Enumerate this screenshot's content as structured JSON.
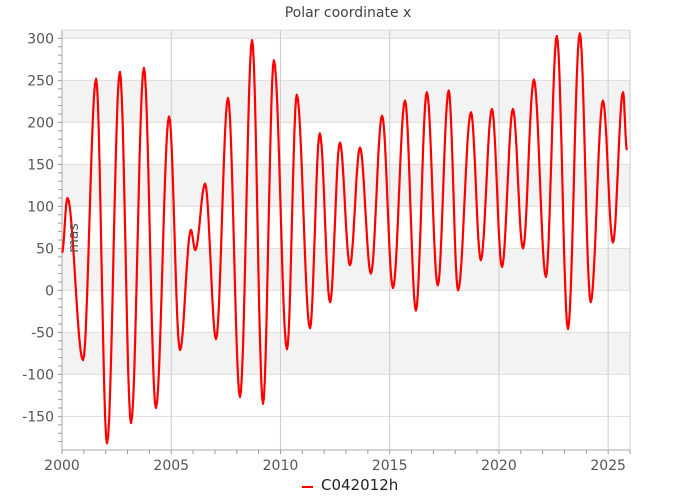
{
  "chart_data": {
    "type": "line",
    "title": "Polar coordinate x",
    "xlabel": "",
    "ylabel": "mas",
    "xlim": [
      2000,
      2026
    ],
    "ylim": [
      -190,
      310
    ],
    "xticks": [
      2000,
      2005,
      2010,
      2015,
      2020,
      2025
    ],
    "yticks": [
      -150,
      -100,
      -50,
      0,
      50,
      100,
      150,
      200,
      250,
      300
    ],
    "grid": true,
    "alternating_bands": true,
    "legend_position": "bottom",
    "series": [
      {
        "name": "C042012h",
        "color": "#ff0000",
        "x": [
          2000.0,
          2000.25,
          2000.96,
          2001.56,
          2002.06,
          2002.65,
          2003.16,
          2003.75,
          2004.3,
          2004.9,
          2005.4,
          2005.9,
          2006.1,
          2006.55,
          2007.05,
          2007.6,
          2008.15,
          2008.7,
          2009.2,
          2009.7,
          2010.3,
          2010.75,
          2011.35,
          2011.8,
          2012.27,
          2012.72,
          2013.18,
          2013.64,
          2014.14,
          2014.65,
          2015.15,
          2015.7,
          2016.2,
          2016.7,
          2017.2,
          2017.7,
          2018.13,
          2018.72,
          2019.17,
          2019.68,
          2020.14,
          2020.64,
          2021.1,
          2021.6,
          2022.15,
          2022.65,
          2023.16,
          2023.7,
          2024.2,
          2024.76,
          2025.22,
          2025.68,
          2025.86
        ],
        "y": [
          45,
          110,
          -83,
          252,
          -182,
          260,
          -158,
          265,
          -140,
          207,
          -71,
          72,
          48,
          127,
          -58,
          229,
          -127,
          298,
          -135,
          274,
          -70,
          233,
          -45,
          187,
          -14,
          176,
          30,
          170,
          20,
          208,
          3,
          226,
          -24,
          236,
          6,
          238,
          0,
          212,
          36,
          216,
          28,
          216,
          50,
          251,
          16,
          303,
          -46,
          306,
          -14,
          226,
          57,
          236,
          167
        ]
      }
    ]
  }
}
